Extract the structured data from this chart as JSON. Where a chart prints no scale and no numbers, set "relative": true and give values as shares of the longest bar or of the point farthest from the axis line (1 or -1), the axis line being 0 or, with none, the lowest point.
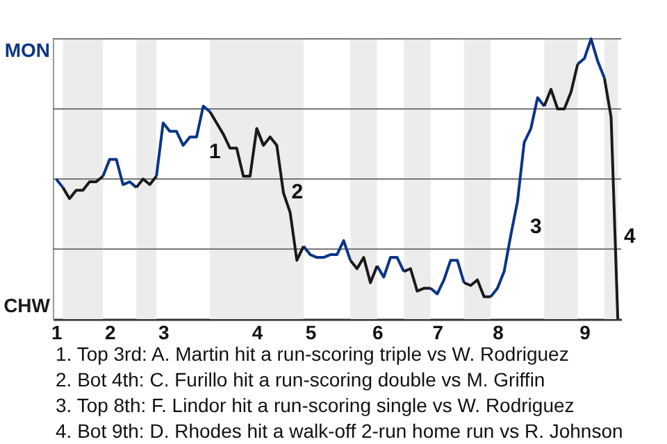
{
  "chart_data": {
    "type": "line",
    "relative": true,
    "categories": [
      "1",
      null,
      null,
      null,
      null,
      null,
      null,
      null,
      "2",
      null,
      null,
      null,
      null,
      null,
      null,
      null,
      "3",
      null,
      null,
      null,
      null,
      null,
      null,
      null,
      null,
      null,
      null,
      null,
      null,
      null,
      "4",
      null,
      null,
      null,
      null,
      null,
      null,
      null,
      "5",
      null,
      null,
      null,
      null,
      null,
      null,
      null,
      null,
      null,
      "6",
      null,
      null,
      null,
      null,
      null,
      null,
      null,
      null,
      "7",
      null,
      null,
      null,
      null,
      null,
      null,
      null,
      null,
      "8",
      null,
      null,
      null,
      null,
      null,
      null,
      null,
      null,
      null,
      null,
      null,
      null,
      "9",
      null,
      null,
      null,
      null,
      null
    ],
    "series": [
      {
        "color": "#0a3587",
        "values": [
          0.5,
          0.47,
          null,
          null,
          null,
          null,
          null,
          0.51,
          0.57,
          0.57,
          0.48,
          0.49,
          0.47,
          null,
          null,
          0.51,
          0.7,
          0.67,
          0.67,
          0.62,
          0.65,
          0.65,
          0.76,
          0.74,
          null,
          null,
          null,
          null,
          null,
          null,
          0.68,
          0.62,
          null,
          null,
          null,
          null,
          null,
          0.26,
          0.23,
          0.22,
          0.22,
          0.23,
          0.23,
          0.28,
          0.21,
          null,
          null,
          null,
          0.19,
          0.15,
          0.22,
          0.22,
          0.17,
          null,
          null,
          null,
          0.11,
          0.09,
          0.14,
          0.21,
          0.21,
          0.13,
          null,
          null,
          null,
          0.08,
          0.11,
          0.17,
          0.3,
          0.42,
          0.63,
          0.68,
          0.79,
          0.76,
          null,
          null,
          null,
          null,
          0.91,
          0.93,
          1,
          0.92,
          0.86,
          null,
          null
        ]
      },
      {
        "color": "#1a1a1a",
        "values": [
          null,
          0.47,
          0.43,
          0.46,
          0.46,
          0.49,
          0.49,
          0.51,
          null,
          null,
          null,
          null,
          0.47,
          0.5,
          0.48,
          0.51,
          null,
          null,
          null,
          null,
          null,
          null,
          null,
          0.74,
          0.7,
          0.66,
          0.61,
          0.61,
          0.51,
          0.51,
          0.68,
          0.62,
          0.65,
          0.62,
          0.45,
          0.38,
          0.21,
          0.26,
          null,
          null,
          null,
          null,
          null,
          null,
          0.21,
          0.18,
          0.22,
          0.13,
          0.19,
          null,
          null,
          null,
          0.17,
          0.18,
          0.1,
          0.11,
          0.11,
          null,
          null,
          null,
          null,
          0.13,
          0.12,
          0.14,
          0.08,
          0.08,
          null,
          null,
          null,
          null,
          null,
          null,
          null,
          0.76,
          0.82,
          0.75,
          0.75,
          0.81,
          0.91,
          null,
          null,
          null,
          0.86,
          0.72,
          0
        ]
      }
    ],
    "grid": "y",
    "annotations": [
      "1",
      "2",
      "3",
      "4",
      "MON",
      "CHW",
      "1. Top 3rd: A. Martin hit a run-scoring triple vs W. Rodriguez",
      "2. Bot 4th: C. Furillo hit a run-scoring double vs M. Griffin",
      "3. Top 8th: F. Lindor hit a run-scoring single vs W. Rodriguez",
      "4. Bot 9th: D. Rhodes hit a walk-off 2-run home run vs R. Johnson"
    ],
    "line_style": "solid"
  }
}
